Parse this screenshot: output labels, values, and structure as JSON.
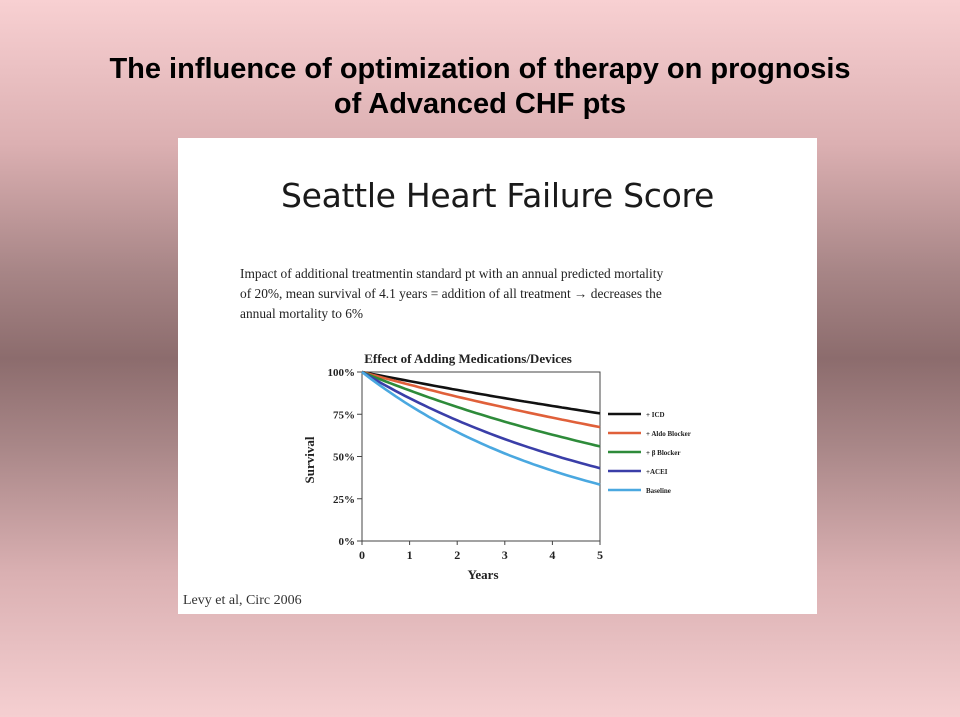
{
  "slide": {
    "title_line1": "The influence of optimization of therapy on prognosis",
    "title_line2": "of Advanced CHF pts"
  },
  "panel": {
    "heading": "Seattle Heart Failure Score",
    "description_lines": [
      "Impact of additional treatmentin standard pt with an annual predicted mortality",
      "of 20%, mean survival of 4.1 years = addition of all treatment → decreases the",
      "annual mortality to 6%"
    ],
    "citation": "Levy et al, Circ 2006"
  },
  "chart_data": {
    "type": "line",
    "title": "Effect of Adding Medications/Devices",
    "xlabel": "Years",
    "ylabel": "Survival",
    "x": [
      0,
      1,
      2,
      3,
      4,
      5
    ],
    "xlim": [
      0,
      5
    ],
    "ylim": [
      0,
      100
    ],
    "y_ticks": [
      "0%",
      "25%",
      "50%",
      "75%",
      "100%"
    ],
    "x_ticks": [
      "0",
      "1",
      "2",
      "3",
      "4",
      "5"
    ],
    "grid": false,
    "legend_position": "right",
    "series": [
      {
        "name": "+ ICD",
        "color": "#111111",
        "values": [
          100,
          94.6,
          89.4,
          84.5,
          79.9,
          75.5
        ]
      },
      {
        "name": "+ Aldo Blocker",
        "color": "#e0603a",
        "values": [
          100,
          92.5,
          85.4,
          79.0,
          73.0,
          67.4
        ]
      },
      {
        "name": "+ β Blocker",
        "color": "#2e8b3a",
        "values": [
          100,
          89.1,
          79.3,
          70.6,
          62.9,
          56.0
        ]
      },
      {
        "name": "+ACEI",
        "color": "#3a3ea8",
        "values": [
          100,
          84.5,
          71.4,
          60.3,
          51.0,
          43.1
        ]
      },
      {
        "name": "Baseline",
        "color": "#4aa8e0",
        "values": [
          100,
          80.3,
          64.5,
          51.8,
          41.6,
          33.4
        ]
      }
    ]
  }
}
